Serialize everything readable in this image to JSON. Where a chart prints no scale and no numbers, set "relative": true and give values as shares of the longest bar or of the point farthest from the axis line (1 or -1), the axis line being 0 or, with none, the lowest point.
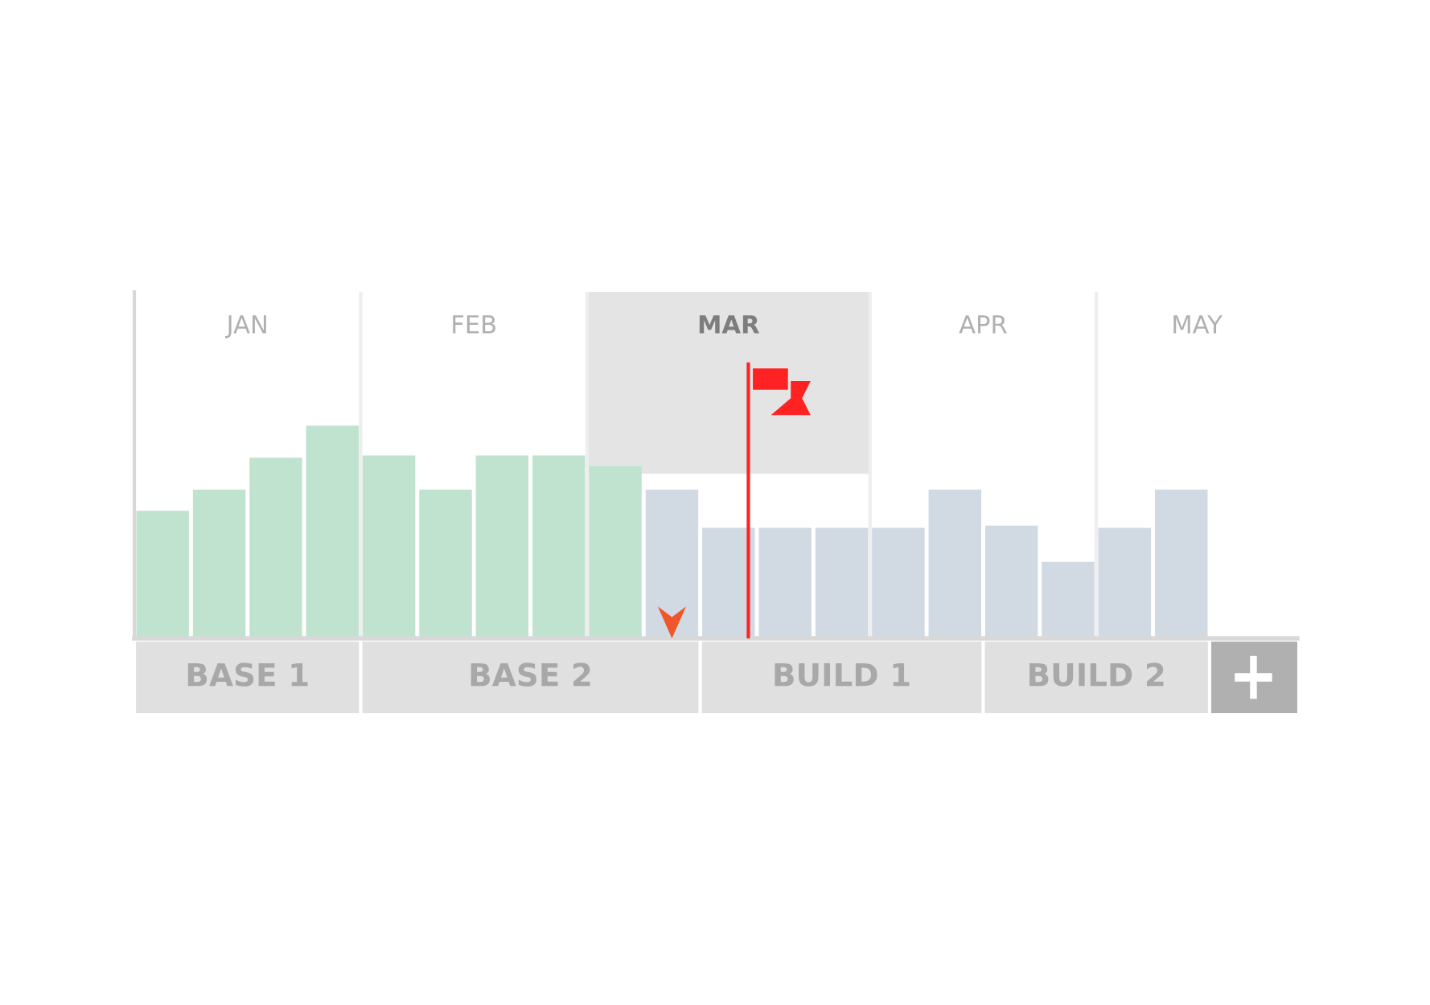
{
  "chart_data": {
    "type": "bar",
    "relative": true,
    "categories": [
      null,
      null,
      null,
      null,
      null,
      null,
      null,
      null,
      null,
      null,
      null,
      null,
      null,
      null,
      null,
      null,
      null,
      null,
      null
    ],
    "values": [
      0.6,
      0.7,
      0.85,
      1,
      0.86,
      0.7,
      0.86,
      0.86,
      0.81,
      0.7,
      0.52,
      0.52,
      0.52,
      0.52,
      0.7,
      0.53,
      0.36,
      0.52,
      0.7
    ],
    "colors": [
      "#c0e3d0",
      "#c0e3d0",
      "#c0e3d0",
      "#c0e3d0",
      "#c0e3d0",
      "#c0e3d0",
      "#c0e3d0",
      "#c0e3d0",
      "#c0e3d0",
      "#d1d9e3",
      "#d1d9e3",
      "#d1d9e3",
      "#d1d9e3",
      "#d1d9e3",
      "#d1d9e3",
      "#d1d9e3",
      "#d1d9e3",
      "#d1d9e3",
      "#d1d9e3"
    ],
    "annotations": [
      "JAN",
      "FEB",
      "MAR",
      "APR",
      "MAY",
      "BASE 1",
      "BASE 2",
      "BUILD 1",
      "BUILD 2"
    ],
    "grid": false
  }
}
